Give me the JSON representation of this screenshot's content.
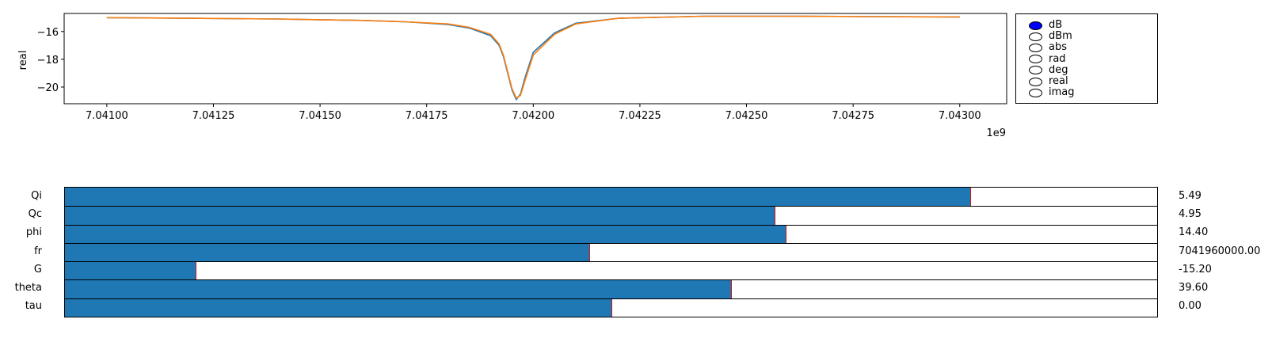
{
  "plot": {
    "ylabel": "real",
    "x_exponent": "1e9",
    "x_tick_labels": [
      "7.04100",
      "7.04125",
      "7.04150",
      "7.04175",
      "7.04200",
      "7.04225",
      "7.04250",
      "7.04275",
      "7.04300"
    ],
    "y_tick_labels": [
      "−16",
      "−18",
      "−20"
    ]
  },
  "chart_data": {
    "type": "line",
    "x_unit_multiplier": 1000000000,
    "xlim": [
      7.0409,
      7.04311
    ],
    "ylim": [
      -21.2,
      -14.7
    ],
    "x_ticks": [
      7.041,
      7.04125,
      7.0415,
      7.04175,
      7.042,
      7.04225,
      7.0425,
      7.04275,
      7.043
    ],
    "y_ticks": [
      -16,
      -18,
      -20
    ],
    "ylabel": "real",
    "series": [
      {
        "color": "#1f77b4",
        "x": [
          7.041,
          7.0412,
          7.0414,
          7.0416,
          7.0417,
          7.0418,
          7.04185,
          7.0419,
          7.04192,
          7.04193,
          7.04194,
          7.04195,
          7.04196,
          7.04197,
          7.04198,
          7.042,
          7.04205,
          7.0421,
          7.0422,
          7.0424,
          7.0426,
          7.0428,
          7.043
        ],
        "y": [
          -15.0,
          -15.05,
          -15.1,
          -15.2,
          -15.3,
          -15.5,
          -15.75,
          -16.3,
          -17.0,
          -17.8,
          -19.0,
          -20.2,
          -20.9,
          -20.5,
          -19.4,
          -17.5,
          -16.1,
          -15.4,
          -15.05,
          -14.9,
          -14.9,
          -14.93,
          -14.95
        ]
      },
      {
        "color": "#ff7f0e",
        "x": [
          7.041,
          7.0412,
          7.0414,
          7.0416,
          7.0417,
          7.0418,
          7.04185,
          7.0419,
          7.04192,
          7.04193,
          7.04194,
          7.04195,
          7.04196,
          7.04197,
          7.04198,
          7.042,
          7.04205,
          7.0421,
          7.0422,
          7.0424,
          7.0426,
          7.0428,
          7.043
        ],
        "y": [
          -15.0,
          -15.05,
          -15.1,
          -15.2,
          -15.3,
          -15.45,
          -15.7,
          -16.2,
          -16.9,
          -17.7,
          -18.9,
          -20.1,
          -20.8,
          -20.6,
          -19.6,
          -17.7,
          -16.2,
          -15.45,
          -15.05,
          -14.9,
          -14.9,
          -14.93,
          -14.95
        ]
      }
    ]
  },
  "radio": {
    "options": [
      "dB",
      "dBm",
      "abs",
      "rad",
      "deg",
      "real",
      "imag"
    ],
    "selected": "dB",
    "selected_color": "#0000ff"
  },
  "sliders": [
    {
      "name": "Qi",
      "value_text": "5.49",
      "fraction": 0.829
    },
    {
      "name": "Qc",
      "value_text": "4.95",
      "fraction": 0.65
    },
    {
      "name": "phi",
      "value_text": "14.40",
      "fraction": 0.66
    },
    {
      "name": "fr",
      "value_text": "7041960000.00",
      "fraction": 0.48
    },
    {
      "name": "G",
      "value_text": "-15.20",
      "fraction": 0.12
    },
    {
      "name": "theta",
      "value_text": "39.60",
      "fraction": 0.61
    },
    {
      "name": "tau",
      "value_text": "0.00",
      "fraction": 0.5
    }
  ],
  "colors": {
    "slider_fill": "#1f77b4",
    "slider_handle": "#e01010"
  }
}
